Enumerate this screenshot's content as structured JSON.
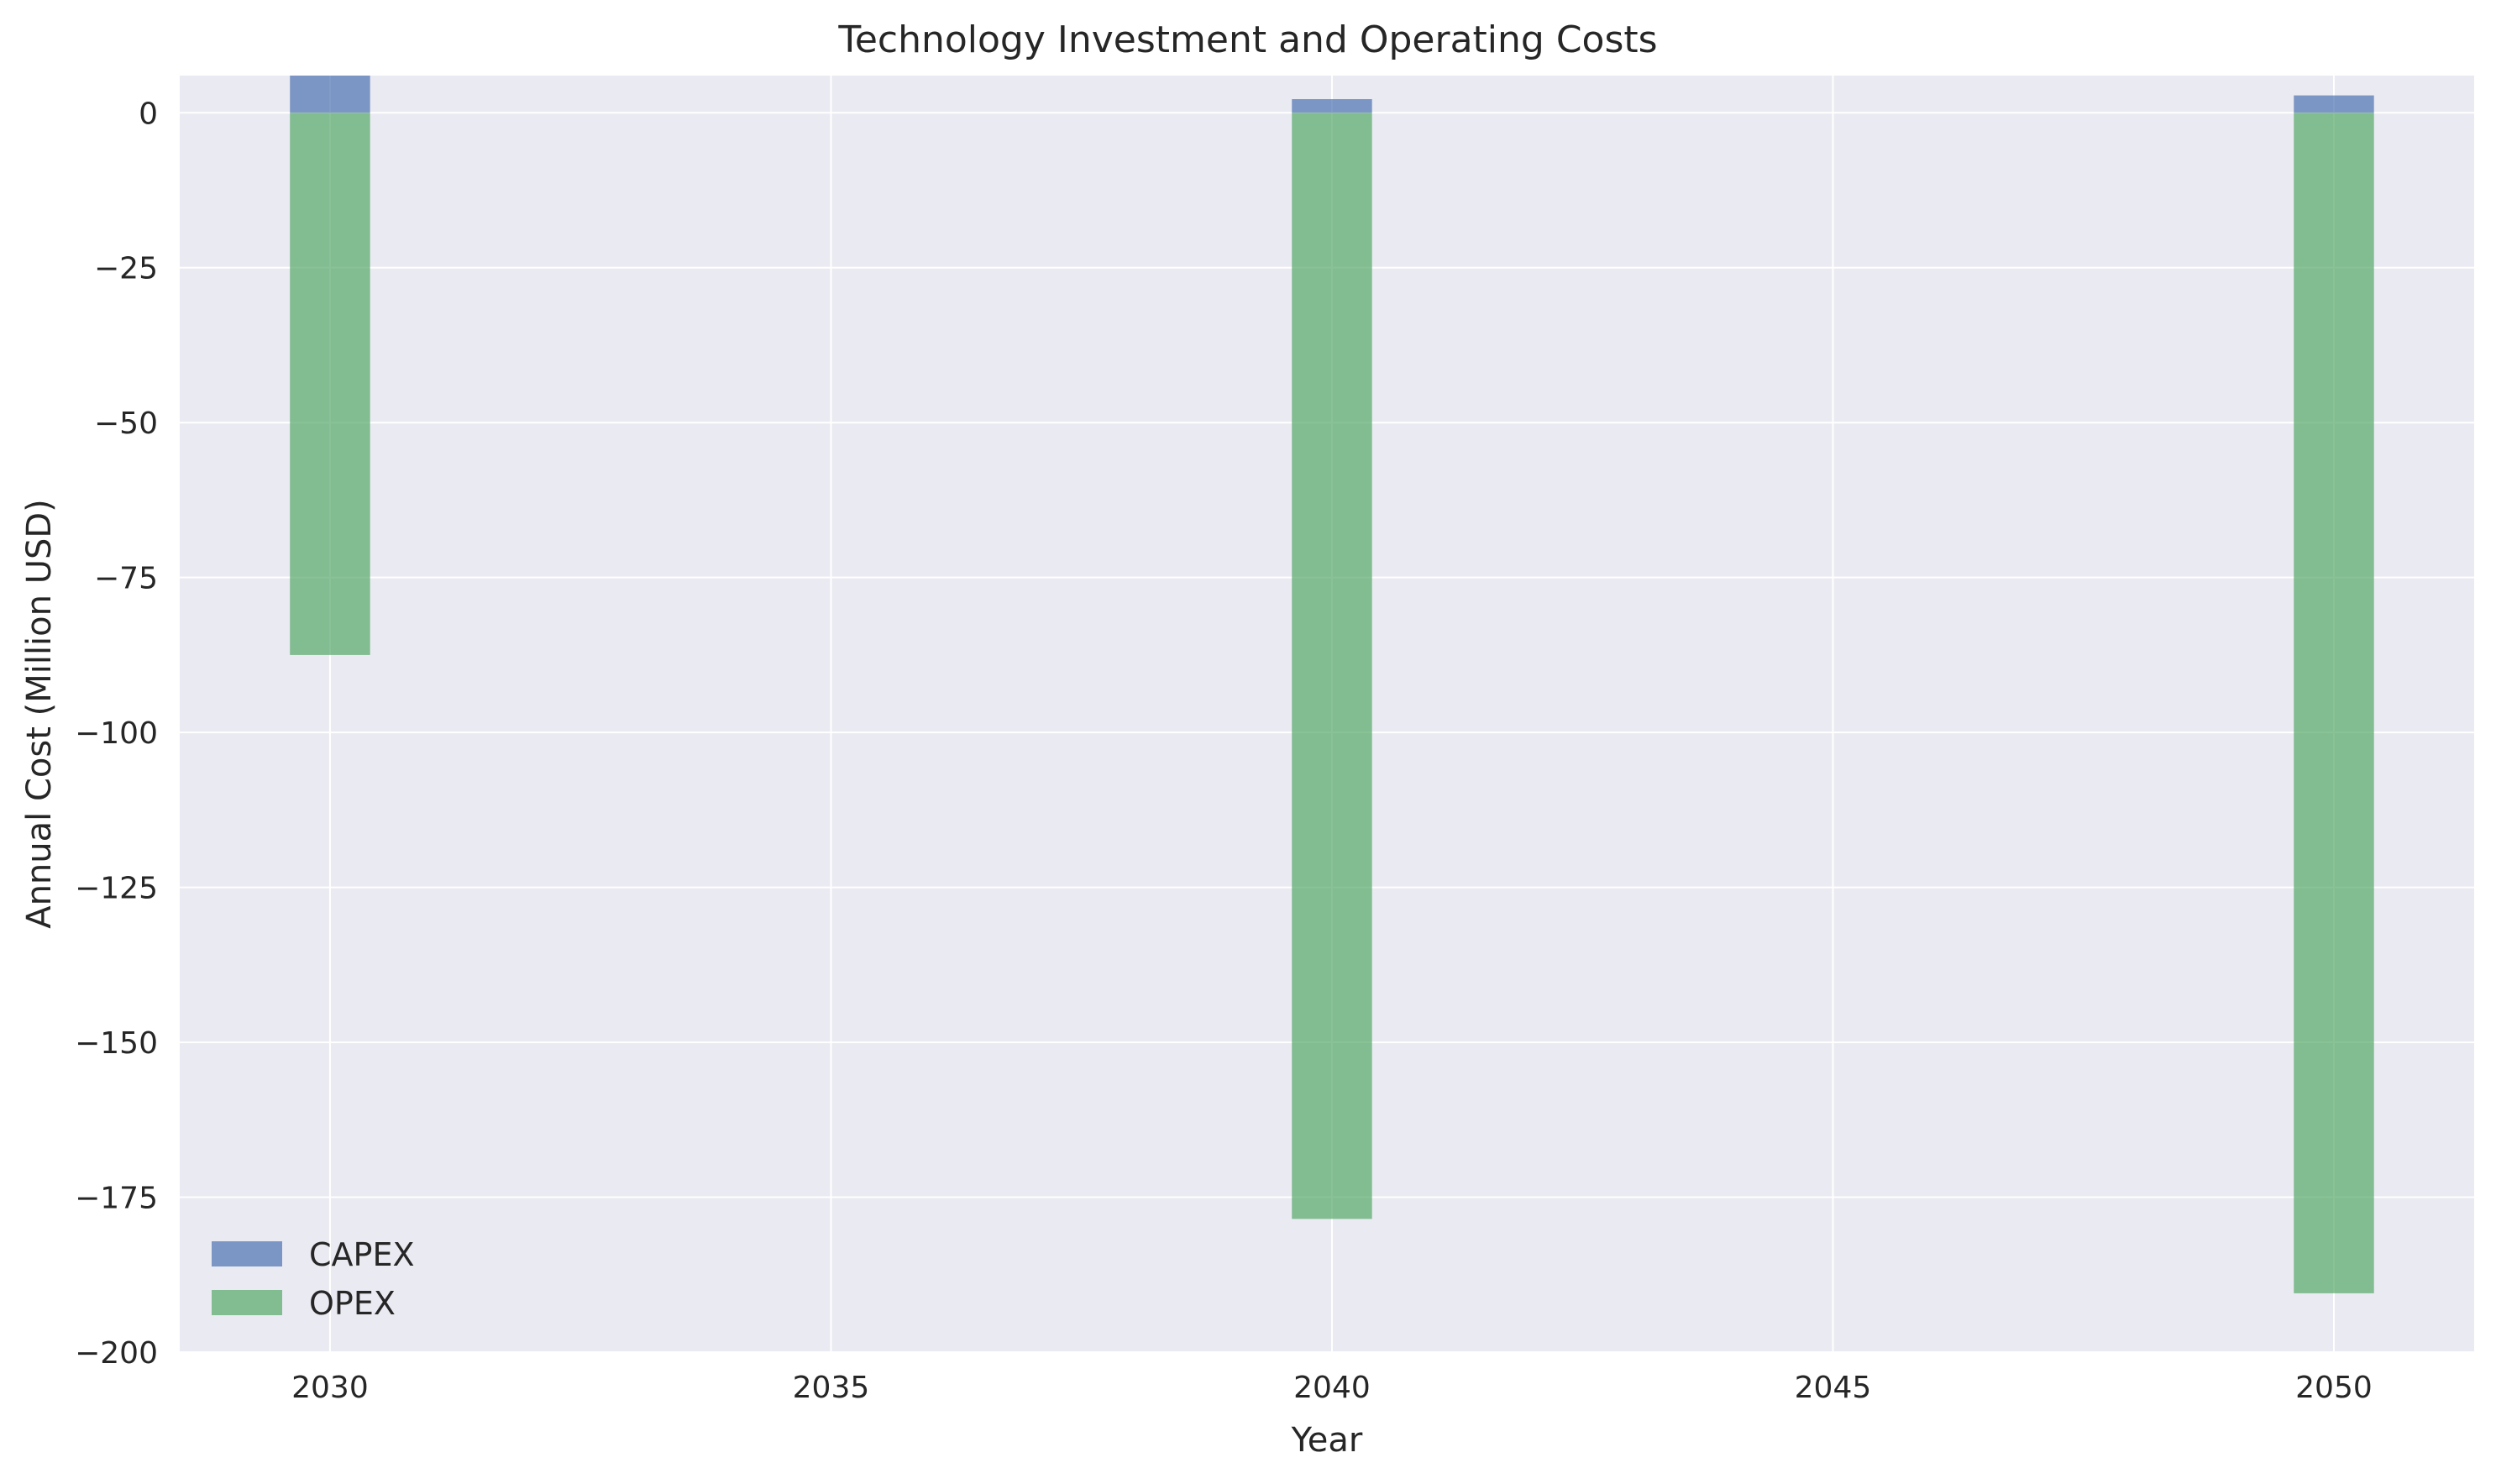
{
  "chart_data": {
    "type": "bar",
    "title": "Technology Investment and Operating Costs",
    "xlabel": "Year",
    "ylabel": "Annual Cost (Million USD)",
    "x": [
      2030,
      2040,
      2050
    ],
    "xlim": [
      2028.5,
      2051.4
    ],
    "ylim": [
      -200,
      6
    ],
    "xticks": [
      2030,
      2035,
      2040,
      2045,
      2050
    ],
    "yticks": [
      0,
      -25,
      -50,
      -75,
      -100,
      -125,
      -150,
      -175,
      -200
    ],
    "bar_width_years": 0.8,
    "grid": true,
    "legend_position": "lower-left",
    "series": [
      {
        "name": "CAPEX",
        "values": [
          6,
          2.2,
          2.8
        ],
        "color": "#4c72b0"
      },
      {
        "name": "OPEX",
        "values": [
          -87.5,
          -178.5,
          -190.5
        ],
        "color": "#55a868"
      }
    ],
    "legend": [
      "CAPEX",
      "OPEX"
    ]
  }
}
